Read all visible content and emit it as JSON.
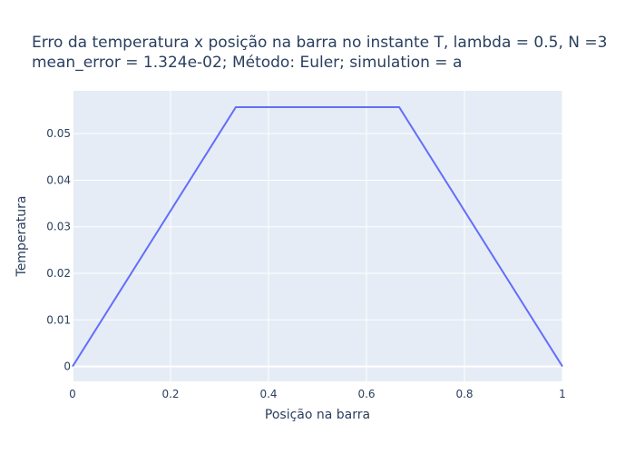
{
  "chart_data": {
    "type": "line",
    "title_lines": [
      "Erro da temperatura x posição na barra no instante T, lambda = 0.5, N =3",
      "mean_error = 1.324e-02; Método: Euler; simulation = a"
    ],
    "xlabel": "Posição na barra",
    "ylabel": "Temperatura",
    "xlim": [
      0,
      1
    ],
    "ylim": [
      -0.0032,
      0.0592
    ],
    "x_ticks": [
      0,
      0.2,
      0.4,
      0.6,
      0.8,
      1
    ],
    "x_tick_labels": [
      "0",
      "0.2",
      "0.4",
      "0.6",
      "0.8",
      "1"
    ],
    "y_ticks": [
      0,
      0.01,
      0.02,
      0.03,
      0.04,
      0.05
    ],
    "y_tick_labels": [
      "0",
      "0.01",
      "0.02",
      "0.03",
      "0.04",
      "0.05"
    ],
    "grid": true,
    "series": [
      {
        "color": "#636efa",
        "x": [
          0,
          0.3333,
          0.6667,
          1
        ],
        "y": [
          0,
          0.0557,
          0.0557,
          0
        ]
      }
    ],
    "colors": {
      "plot_background": "#e5ecf6",
      "grid": "#ffffff",
      "text": "#2a3f5f"
    }
  }
}
